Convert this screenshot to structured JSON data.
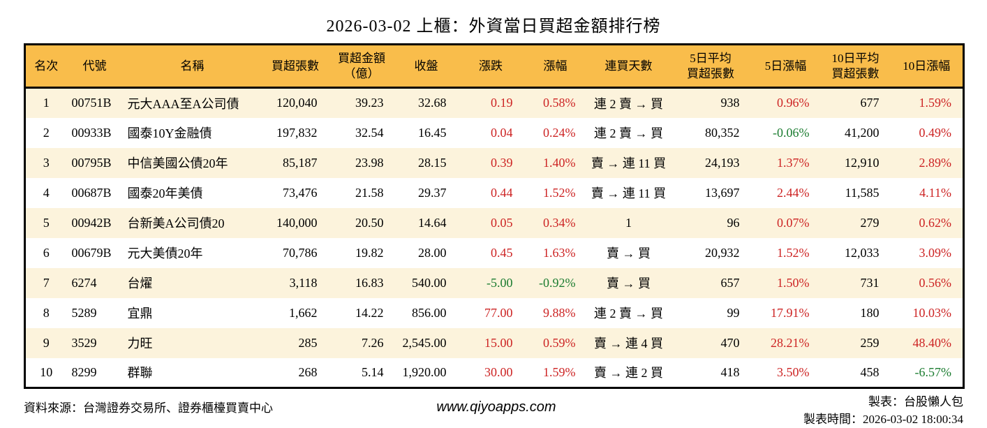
{
  "title": "2026-03-02 上櫃：外資當日買超金額排行榜",
  "colors": {
    "header_bg": "#f9bd4b",
    "row_alt_bg": "#fcf3dc",
    "up_red": "#cd2424",
    "down_green": "#1b7c30",
    "border": "#000000"
  },
  "chart_data": {
    "type": "table",
    "title": "2026-03-02 上櫃：外資當日買超金額排行榜",
    "columns": [
      {
        "key": "rank",
        "label": "名次"
      },
      {
        "key": "code",
        "label": "代號"
      },
      {
        "key": "name",
        "label": "名稱"
      },
      {
        "key": "volume",
        "label": "買超張數"
      },
      {
        "key": "amount",
        "label": "買超金額\n（億）"
      },
      {
        "key": "close",
        "label": "收盤"
      },
      {
        "key": "change",
        "label": "漲跌"
      },
      {
        "key": "change_pct",
        "label": "漲幅"
      },
      {
        "key": "streak",
        "label": "連買天數"
      },
      {
        "key": "avg5_volume",
        "label": "5日平均\n買超張數"
      },
      {
        "key": "pct5",
        "label": "5日漲幅"
      },
      {
        "key": "avg10_volume",
        "label": "10日平均\n買超張數"
      },
      {
        "key": "pct10",
        "label": "10日漲幅"
      }
    ],
    "rows": [
      {
        "rank": "1",
        "code": "00751B",
        "name": "元大AAA至A公司債",
        "volume": "120,040",
        "amount": "39.23",
        "close": "32.68",
        "change": "0.19",
        "change_pct": "0.58%",
        "streak": "連 2 賣 → 買",
        "avg5_volume": "938",
        "pct5": "0.96%",
        "avg10_volume": "677",
        "pct10": "1.59%"
      },
      {
        "rank": "2",
        "code": "00933B",
        "name": "國泰10Y金融債",
        "volume": "197,832",
        "amount": "32.54",
        "close": "16.45",
        "change": "0.04",
        "change_pct": "0.24%",
        "streak": "連 2 賣 → 買",
        "avg5_volume": "80,352",
        "pct5": "-0.06%",
        "avg10_volume": "41,200",
        "pct10": "0.49%"
      },
      {
        "rank": "3",
        "code": "00795B",
        "name": "中信美國公債20年",
        "volume": "85,187",
        "amount": "23.98",
        "close": "28.15",
        "change": "0.39",
        "change_pct": "1.40%",
        "streak": "賣 → 連 11 買",
        "avg5_volume": "24,193",
        "pct5": "1.37%",
        "avg10_volume": "12,910",
        "pct10": "2.89%"
      },
      {
        "rank": "4",
        "code": "00687B",
        "name": "國泰20年美債",
        "volume": "73,476",
        "amount": "21.58",
        "close": "29.37",
        "change": "0.44",
        "change_pct": "1.52%",
        "streak": "賣 → 連 11 買",
        "avg5_volume": "13,697",
        "pct5": "2.44%",
        "avg10_volume": "11,585",
        "pct10": "4.11%"
      },
      {
        "rank": "5",
        "code": "00942B",
        "name": "台新美A公司債20",
        "volume": "140,000",
        "amount": "20.50",
        "close": "14.64",
        "change": "0.05",
        "change_pct": "0.34%",
        "streak": "1",
        "avg5_volume": "96",
        "pct5": "0.07%",
        "avg10_volume": "279",
        "pct10": "0.62%"
      },
      {
        "rank": "6",
        "code": "00679B",
        "name": "元大美債20年",
        "volume": "70,786",
        "amount": "19.82",
        "close": "28.00",
        "change": "0.45",
        "change_pct": "1.63%",
        "streak": "賣 → 買",
        "avg5_volume": "20,932",
        "pct5": "1.52%",
        "avg10_volume": "12,033",
        "pct10": "3.09%"
      },
      {
        "rank": "7",
        "code": "6274",
        "name": "台燿",
        "volume": "3,118",
        "amount": "16.83",
        "close": "540.00",
        "change": "-5.00",
        "change_pct": "-0.92%",
        "streak": "賣 → 買",
        "avg5_volume": "657",
        "pct5": "1.50%",
        "avg10_volume": "731",
        "pct10": "0.56%"
      },
      {
        "rank": "8",
        "code": "5289",
        "name": "宜鼎",
        "volume": "1,662",
        "amount": "14.22",
        "close": "856.00",
        "change": "77.00",
        "change_pct": "9.88%",
        "streak": "連 2 賣 → 買",
        "avg5_volume": "99",
        "pct5": "17.91%",
        "avg10_volume": "180",
        "pct10": "10.03%"
      },
      {
        "rank": "9",
        "code": "3529",
        "name": "力旺",
        "volume": "285",
        "amount": "7.26",
        "close": "2,545.00",
        "change": "15.00",
        "change_pct": "0.59%",
        "streak": "賣 → 連 4 買",
        "avg5_volume": "470",
        "pct5": "28.21%",
        "avg10_volume": "259",
        "pct10": "48.40%"
      },
      {
        "rank": "10",
        "code": "8299",
        "name": "群聯",
        "volume": "268",
        "amount": "5.14",
        "close": "1,920.00",
        "change": "30.00",
        "change_pct": "1.59%",
        "streak": "賣 → 連 2 買",
        "avg5_volume": "418",
        "pct5": "3.50%",
        "avg10_volume": "458",
        "pct10": "-6.57%"
      }
    ]
  },
  "footer": {
    "source": "資料來源：台灣證券交易所、證券櫃檯買賣中心",
    "url": "www.qiyoapps.com",
    "maker": "製表：台股懶人包",
    "made_at": "製表時間：2026-03-02 18:00:34"
  }
}
